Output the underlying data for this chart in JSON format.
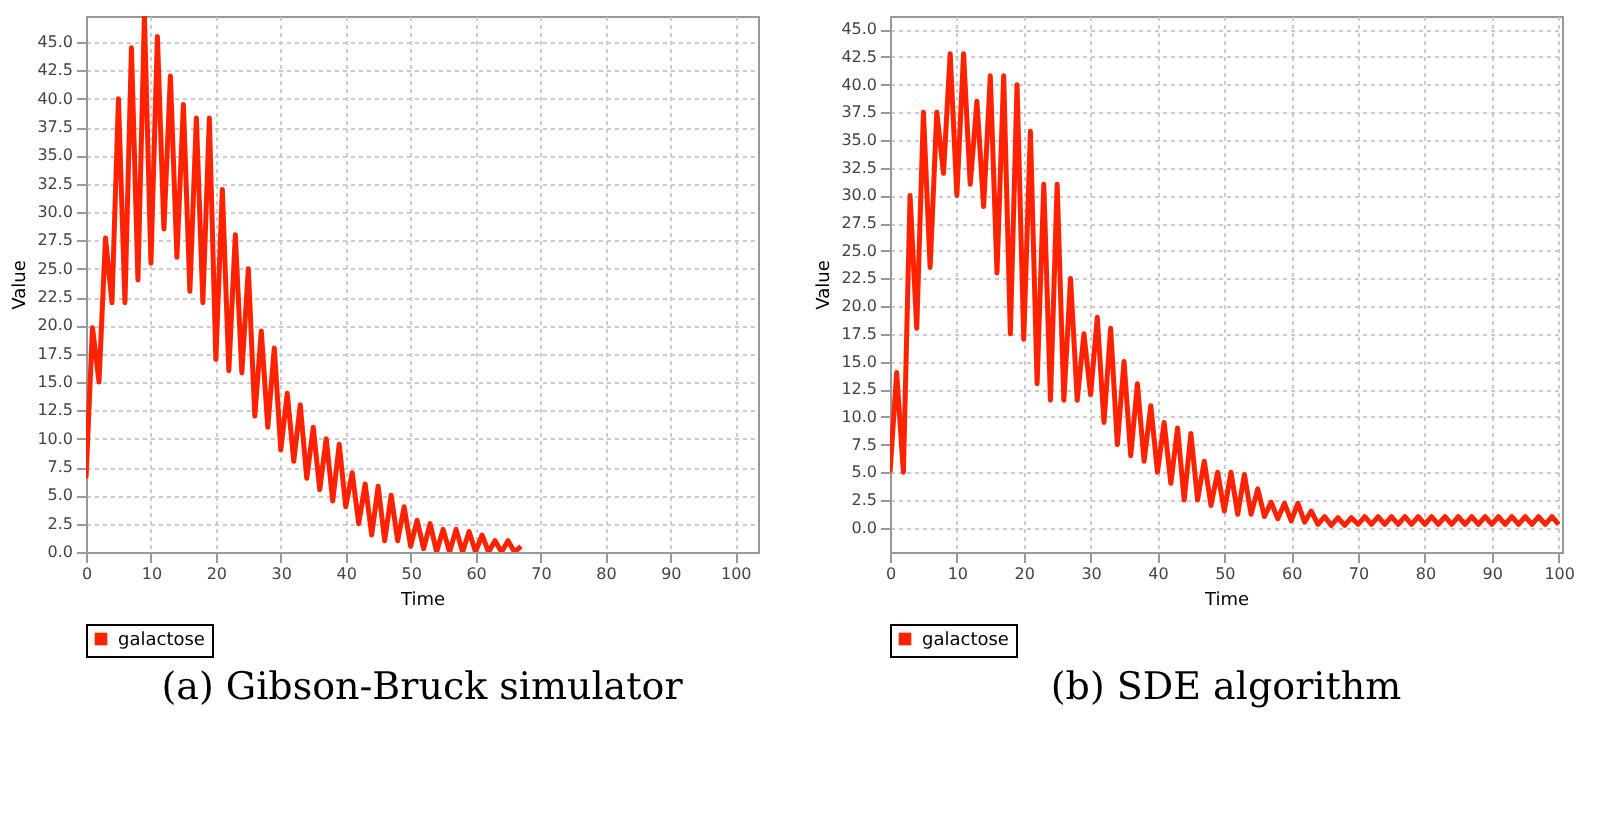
{
  "chart_data": [
    {
      "type": "line",
      "title": "(a) Gibson-Bruck simulator",
      "xlabel": "Time",
      "ylabel": "Value",
      "grid": true,
      "legend": "bottom",
      "marker": "none",
      "x": [
        0,
        1,
        2,
        3,
        4,
        5,
        6,
        7,
        8,
        9,
        10,
        11,
        12,
        13,
        14,
        15,
        16,
        17,
        18,
        19,
        20,
        21,
        22,
        23,
        24,
        25,
        26,
        27,
        28,
        29,
        30,
        31,
        32,
        33,
        34,
        35,
        36,
        37,
        38,
        39,
        40,
        41,
        42,
        43,
        44,
        45,
        46,
        47,
        48,
        49,
        50,
        51,
        52,
        53,
        54,
        55,
        56,
        57,
        58,
        59,
        60,
        61,
        62,
        63,
        64,
        65,
        66,
        67
      ],
      "series": [
        {
          "name": "galactose",
          "color": "#ff2200",
          "values": [
            6.5,
            19.8,
            15,
            27.7,
            22,
            40,
            22,
            44.5,
            24,
            47.3,
            25.5,
            45.5,
            28.5,
            42,
            26,
            39.5,
            23,
            38.3,
            22,
            38.3,
            17,
            32,
            16,
            28,
            15.8,
            25,
            12,
            19.5,
            11,
            18,
            9,
            14,
            8,
            13,
            6.5,
            11,
            5.5,
            10,
            4.5,
            9.5,
            4,
            7,
            2.5,
            6,
            1.5,
            5.8,
            1,
            5,
            1,
            4,
            0.5,
            2.8,
            0.3,
            2.5,
            0,
            2,
            0,
            2,
            0,
            1.8,
            0,
            1.5,
            0,
            1,
            0,
            1,
            0,
            0.5
          ]
        }
      ],
      "xlim": [
        0,
        103.5
      ],
      "xticks": [
        0,
        10,
        20,
        30,
        40,
        50,
        60,
        70,
        80,
        90,
        100
      ],
      "ylim": [
        0,
        47.3
      ],
      "yticks": [
        {
          "value": 0,
          "label": "0.0"
        },
        {
          "value": 2.5,
          "label": "2.5"
        },
        {
          "value": 5,
          "label": "5.0"
        },
        {
          "value": 7.5,
          "label": "7.5"
        },
        {
          "value": 10,
          "label": "10.0"
        },
        {
          "value": 12.5,
          "label": "12.5"
        },
        {
          "value": 15,
          "label": "15.0"
        },
        {
          "value": 17.5,
          "label": "17.5"
        },
        {
          "value": 20,
          "label": "20.0"
        },
        {
          "value": 22.5,
          "label": "22.5"
        },
        {
          "value": 25,
          "label": "25.0"
        },
        {
          "value": 27.5,
          "label": "27.5"
        },
        {
          "value": 30,
          "label": "30.0"
        },
        {
          "value": 32.5,
          "label": "32.5"
        },
        {
          "value": 35,
          "label": "35.0"
        },
        {
          "value": 37.5,
          "label": "37.5"
        },
        {
          "value": 40,
          "label": "40.0"
        },
        {
          "value": 42.5,
          "label": "42.5"
        },
        {
          "value": 45,
          "label": "45.0"
        }
      ]
    },
    {
      "type": "line",
      "title": "(b) SDE algorithm",
      "xlabel": "Time",
      "ylabel": "Value",
      "grid": true,
      "legend": "bottom",
      "marker": "none",
      "x": [
        0,
        1,
        2,
        3,
        4,
        5,
        6,
        7,
        8,
        9,
        10,
        11,
        12,
        13,
        14,
        15,
        16,
        17,
        18,
        19,
        20,
        21,
        22,
        23,
        24,
        25,
        26,
        27,
        28,
        29,
        30,
        31,
        32,
        33,
        34,
        35,
        36,
        37,
        38,
        39,
        40,
        41,
        42,
        43,
        44,
        45,
        46,
        47,
        48,
        49,
        50,
        51,
        52,
        53,
        54,
        55,
        56,
        57,
        58,
        59,
        60,
        61,
        62,
        63,
        64,
        65,
        66,
        67,
        68,
        69,
        70,
        71,
        72,
        73,
        74,
        75,
        76,
        77,
        78,
        79,
        80,
        81,
        82,
        83,
        84,
        85,
        86,
        87,
        88,
        89,
        90,
        91,
        92,
        93,
        94,
        95,
        96,
        97,
        98,
        99,
        100
      ],
      "series": [
        {
          "name": "galactose",
          "color": "#ff2200",
          "values": [
            5,
            14,
            5,
            30,
            18,
            37.5,
            23.5,
            37.5,
            32,
            42.8,
            30,
            42.8,
            31,
            38.5,
            29,
            40.8,
            23,
            40.8,
            17.5,
            40,
            17,
            35.8,
            13,
            31,
            11.5,
            31,
            11.5,
            22.5,
            11.5,
            17.5,
            12,
            19,
            9.5,
            18,
            7.5,
            15,
            6.5,
            13,
            6,
            11,
            5,
            9.5,
            4,
            9,
            2.5,
            8.5,
            2.5,
            6,
            2,
            5,
            1.5,
            5,
            1.2,
            4.8,
            1.2,
            3.5,
            1,
            2.3,
            0.8,
            2.2,
            0.6,
            2.2,
            0.5,
            1.5,
            0.3,
            1,
            0.2,
            0.9,
            0.2,
            0.9,
            0.3,
            1,
            0.3,
            1,
            0.3,
            1,
            0.3,
            1,
            0.3,
            1,
            0.3,
            1,
            0.3,
            1,
            0.3,
            1,
            0.3,
            1,
            0.3,
            1,
            0.3,
            1,
            0.3,
            1,
            0.3,
            1,
            0.3,
            1,
            0.3,
            1,
            0.3
          ]
        }
      ],
      "xlim": [
        0,
        100.5
      ],
      "xticks": [
        0,
        10,
        20,
        30,
        40,
        50,
        60,
        70,
        80,
        90,
        100
      ],
      "ylim": [
        -2.2,
        46.2
      ],
      "yticks": [
        {
          "value": 0,
          "label": "0.0"
        },
        {
          "value": 2.5,
          "label": "2.5"
        },
        {
          "value": 5,
          "label": "5.0"
        },
        {
          "value": 7.5,
          "label": "7.5"
        },
        {
          "value": 10,
          "label": "10.0"
        },
        {
          "value": 12.5,
          "label": "12.5"
        },
        {
          "value": 15,
          "label": "15.0"
        },
        {
          "value": 17.5,
          "label": "17.5"
        },
        {
          "value": 20,
          "label": "20.0"
        },
        {
          "value": 22.5,
          "label": "22.5"
        },
        {
          "value": 25,
          "label": "25.0"
        },
        {
          "value": 27.5,
          "label": "27.5"
        },
        {
          "value": 30,
          "label": "30.0"
        },
        {
          "value": 32.5,
          "label": "32.5"
        },
        {
          "value": 35,
          "label": "35.0"
        },
        {
          "value": 37.5,
          "label": "37.5"
        },
        {
          "value": 40,
          "label": "40.0"
        },
        {
          "value": 42.5,
          "label": "42.5"
        },
        {
          "value": 45,
          "label": "45.0"
        }
      ]
    }
  ]
}
